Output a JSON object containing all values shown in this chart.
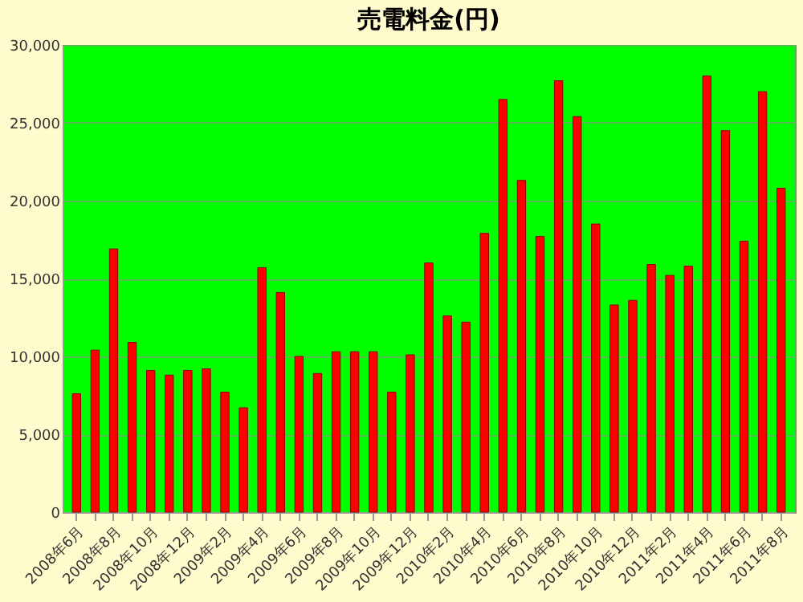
{
  "chart_data": {
    "type": "bar",
    "title": "売電料金(円)",
    "categories": [
      "2008年6月",
      null,
      "2008年8月",
      null,
      "2008年10月",
      null,
      "2008年12月",
      null,
      "2009年2月",
      null,
      "2009年4月",
      null,
      "2009年6月",
      null,
      "2009年8月",
      null,
      "2009年10月",
      null,
      "2009年12月",
      null,
      "2010年2月",
      null,
      "2010年4月",
      null,
      "2010年6月",
      null,
      "2010年8月",
      null,
      "2010年10月",
      null,
      "2010年12月",
      null,
      "2011年2月",
      null,
      "2011年4月",
      null,
      "2011年6月",
      null,
      "2011年8月"
    ],
    "values": [
      7600,
      10400,
      16900,
      10900,
      9100,
      8800,
      9100,
      9200,
      7700,
      6700,
      15700,
      14100,
      10000,
      8900,
      10300,
      10300,
      10300,
      7700,
      10100,
      16000,
      12600,
      12200,
      17900,
      26500,
      21300,
      17700,
      27700,
      25400,
      18500,
      13300,
      13600,
      15900,
      15200,
      15800,
      28000,
      24500,
      17400,
      27000,
      20800
    ],
    "color": "#ff0000",
    "ylim": [
      0,
      30000
    ],
    "yticks": [
      0,
      {
        "value": 5000,
        "label": "5,000"
      },
      {
        "value": 10000,
        "label": "10,000"
      },
      {
        "value": 15000,
        "label": "15,000"
      },
      {
        "value": 20000,
        "label": "20,000"
      },
      {
        "value": 25000,
        "label": "25,000"
      },
      {
        "value": 30000,
        "label": "30,000"
      }
    ],
    "grid": true
  }
}
